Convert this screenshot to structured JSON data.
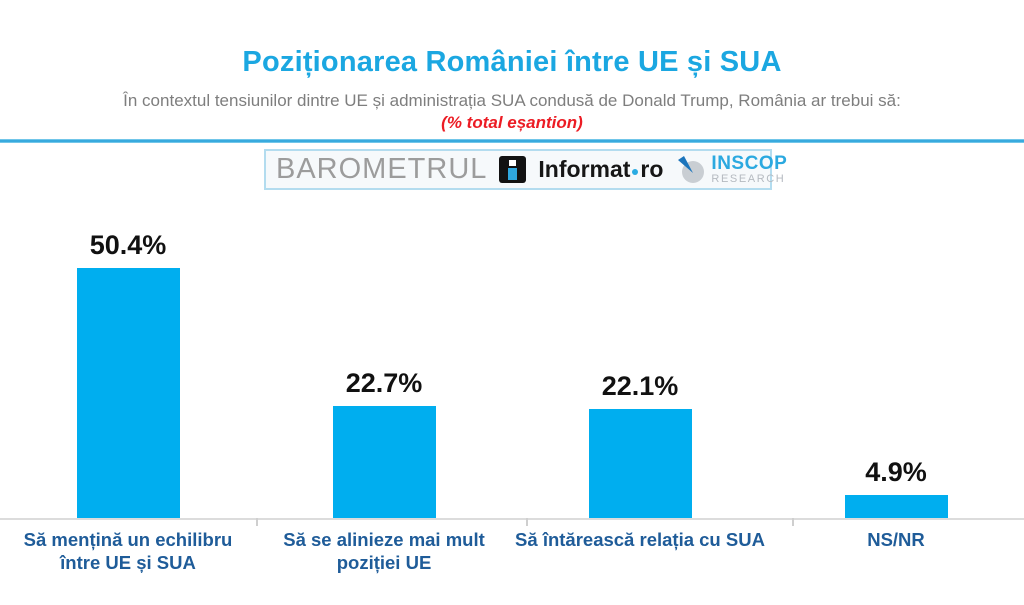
{
  "header": {
    "title": "Poziționarea României între UE și SUA",
    "subtitle": "În contextul tensiunilor dintre UE și administrația SUA condusă de Donald Trump, România ar trebui să:",
    "sample_note": "(% total eșantion)"
  },
  "branding": {
    "barometrul": "BAROMETRUL",
    "informat_name": "Informat",
    "informat_tld": "ro",
    "inscop_name": "INSCOP",
    "inscop_sub": "RESEARCH"
  },
  "chart_data": {
    "type": "bar",
    "categories": [
      "Să mențină un echilibru între UE și SUA",
      "Să se alinieze mai mult poziției UE",
      "Să întărească relația cu SUA",
      "NS/NR"
    ],
    "values": [
      50.4,
      22.7,
      22.1,
      4.9
    ],
    "value_labels": [
      "50.4%",
      "22.7%",
      "22.1%",
      "4.9%"
    ],
    "title": "Poziționarea României între UE și SUA",
    "xlabel": "",
    "ylabel": "",
    "ylim": [
      0,
      60
    ],
    "grid": false,
    "legend": false,
    "bar_color": "#00AEEF",
    "value_label_color": "#111111",
    "category_label_color": "#1F5C99"
  },
  "colors": {
    "title_blue": "#1BA7E1",
    "subtitle_gray": "#7E7E7E",
    "note_red": "#EC1C24",
    "divider_cyan": "#1B9CD8",
    "baseline_gray": "#DCDCDC"
  }
}
